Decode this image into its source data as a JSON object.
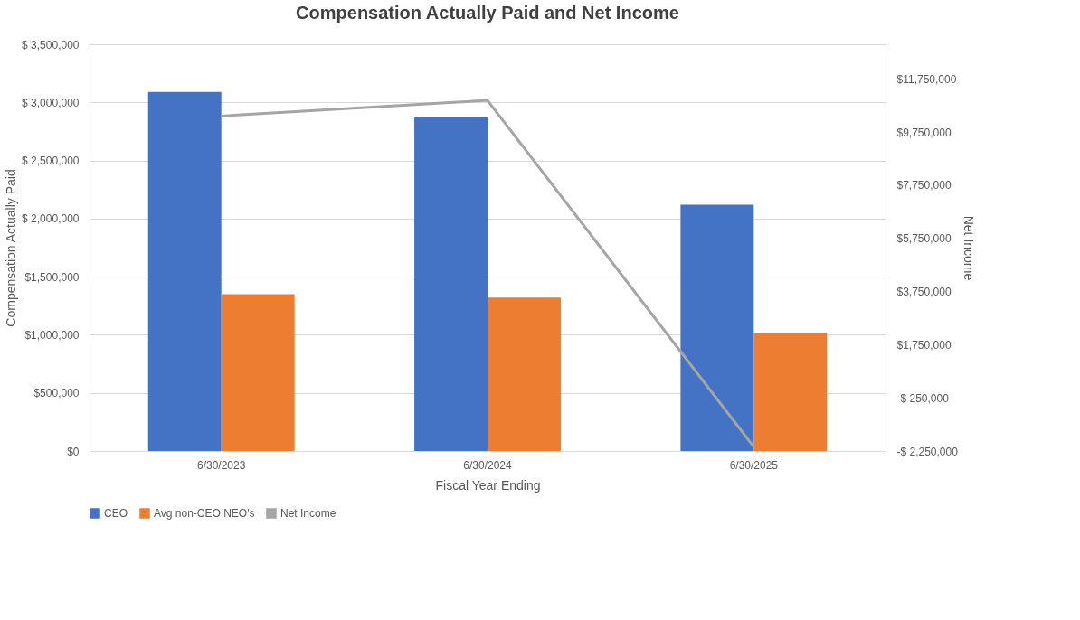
{
  "chart_data": {
    "type": "bar",
    "title": "Compensation Actually Paid and Net Income",
    "xlabel": "Fiscal Year Ending",
    "ylabel": "Compensation Actually Paid",
    "y2label": "Net Income",
    "categories": [
      "6/30/2023",
      "6/30/2024",
      "6/30/2025"
    ],
    "series": [
      {
        "name": "CEO",
        "color": "#4472c4",
        "values": [
          3090000,
          2870000,
          2120000
        ]
      },
      {
        "name": "Avg non-CEO NEO's",
        "color": "#ed7d31",
        "values": [
          1350000,
          1320000,
          1015000
        ]
      },
      {
        "name": "Net Income",
        "type": "line",
        "axis": "y2",
        "color": "#a5a5a5",
        "values": [
          10350000,
          10940000,
          -2090000
        ]
      }
    ],
    "ylim": [
      0,
      3500000
    ],
    "yticks": [
      {
        "value": 0,
        "label": "$0"
      },
      {
        "value": 500000,
        "label": "$500,000"
      },
      {
        "value": 1000000,
        "label": "$1,000,000"
      },
      {
        "value": 1500000,
        "label": "$1,500,000"
      },
      {
        "value": 2000000,
        "label": "$ 2,000,000"
      },
      {
        "value": 2500000,
        "label": "$ 2,500,000"
      },
      {
        "value": 3000000,
        "label": "$ 3,000,000"
      },
      {
        "value": 3500000,
        "label": "$ 3,500,000"
      }
    ],
    "y2lim": [
      -2250000,
      13050000
    ],
    "y2ticks": [
      {
        "value": -2250000,
        "label": "-$ 2,250,000"
      },
      {
        "value": -250000,
        "label": "-$ 250,000"
      },
      {
        "value": 1750000,
        "label": "$1,750,000"
      },
      {
        "value": 3750000,
        "label": "$3,750,000"
      },
      {
        "value": 5750000,
        "label": "$5,750,000"
      },
      {
        "value": 7750000,
        "label": "$7,750,000"
      },
      {
        "value": 9750000,
        "label": "$9,750,000"
      },
      {
        "value": 11750000,
        "label": "$11,750,000"
      }
    ],
    "grid": "y",
    "legend": "bottom"
  }
}
